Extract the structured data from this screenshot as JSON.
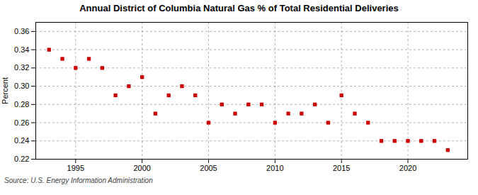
{
  "chart_data": {
    "type": "scatter",
    "title": "Annual District of Columbia Natural Gas % of Total Residential Deliveries",
    "ylabel": "Percent",
    "source": "Source: U.S. Energy Information Administration",
    "x": [
      1993,
      1994,
      1995,
      1996,
      1997,
      1998,
      1999,
      2000,
      2001,
      2002,
      2003,
      2004,
      2005,
      2006,
      2007,
      2008,
      2009,
      2010,
      2011,
      2012,
      2013,
      2014,
      2015,
      2016,
      2017,
      2018,
      2019,
      2020,
      2021,
      2022,
      2023
    ],
    "values": [
      0.34,
      0.33,
      0.32,
      0.33,
      0.32,
      0.29,
      0.3,
      0.31,
      0.27,
      0.29,
      0.3,
      0.29,
      0.26,
      0.28,
      0.27,
      0.28,
      0.28,
      0.26,
      0.27,
      0.27,
      0.28,
      0.26,
      0.29,
      0.27,
      0.26,
      0.24,
      0.24,
      0.24,
      0.24,
      0.24,
      0.23
    ],
    "xlim": [
      1992.0,
      2024.5
    ],
    "xticks": [
      1995,
      2000,
      2005,
      2010,
      2015,
      2020
    ],
    "ylim": [
      0.22,
      0.37
    ],
    "yticks": [
      0.22,
      0.24,
      0.26,
      0.28,
      {
        "value": 0.3,
        "label": "0.30"
      },
      0.32,
      0.34,
      0.36
    ],
    "color": "#cc0000",
    "marker": "square",
    "grid": true
  }
}
